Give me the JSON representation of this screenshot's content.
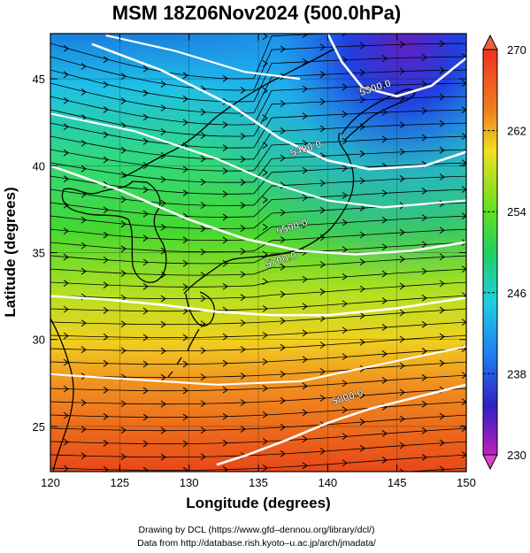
{
  "title": "MSM 18Z06Nov2024 (500.0hPa)",
  "xaxis": {
    "label": "Longitude (degrees)",
    "range": [
      120,
      150
    ],
    "ticks": [
      "120",
      "125",
      "130",
      "135",
      "140",
      "145",
      "150"
    ]
  },
  "yaxis": {
    "label": "Latitude  (degrees)",
    "range": [
      22.4,
      47.6
    ],
    "ticks": [
      "25",
      "30",
      "35",
      "40",
      "45"
    ]
  },
  "colorbar": {
    "range": [
      230,
      270
    ],
    "labels": [
      "270",
      "262",
      "254",
      "246",
      "238",
      "230"
    ],
    "colormap": "rainbow",
    "extend": "both"
  },
  "contours": [
    {
      "label": "5300.0"
    },
    {
      "label": "5400.0"
    },
    {
      "label": "5500.0"
    },
    {
      "label": "5700.0"
    },
    {
      "label": "5800.0"
    }
  ],
  "credits": {
    "line1": "Drawing by DCL (https://www.gfd–dennou.org/library/dcl/)",
    "line2": "Data from http://database.rish.kyoto–u.ac.jp/arch/jmadata/"
  },
  "colors": {
    "axes": "#000000",
    "contour": "#ffffff",
    "streamline": "#000000"
  }
}
